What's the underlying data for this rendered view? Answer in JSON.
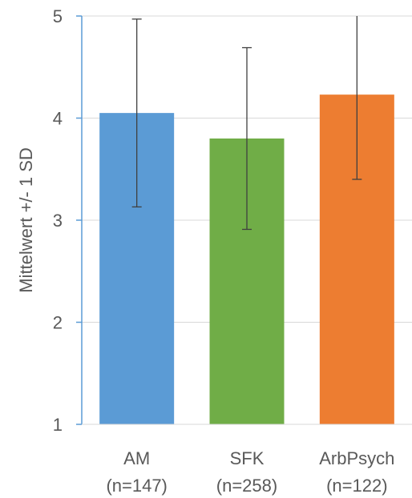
{
  "chart_data": {
    "type": "bar",
    "title": "",
    "xlabel": "",
    "ylabel": "Mittelwert +/- 1 SD",
    "ylim": [
      1,
      5
    ],
    "yticks": [
      1,
      2,
      3,
      4,
      5
    ],
    "grid": true,
    "categories": [
      {
        "line1": "AM",
        "line2": "(n=147)"
      },
      {
        "line1": "SFK",
        "line2": "(n=258)"
      },
      {
        "line1": "ArbPsych",
        "line2": "(n=122)"
      }
    ],
    "values": [
      4.05,
      3.8,
      4.23
    ],
    "error_sd": [
      0.92,
      0.89,
      0.83
    ],
    "colors": [
      "#5B9BD5",
      "#70AD47",
      "#ED7D31"
    ],
    "axis_color": "#5B9BD5",
    "grid_color": "#D9D9D9",
    "errorbar_color": "#404040"
  }
}
